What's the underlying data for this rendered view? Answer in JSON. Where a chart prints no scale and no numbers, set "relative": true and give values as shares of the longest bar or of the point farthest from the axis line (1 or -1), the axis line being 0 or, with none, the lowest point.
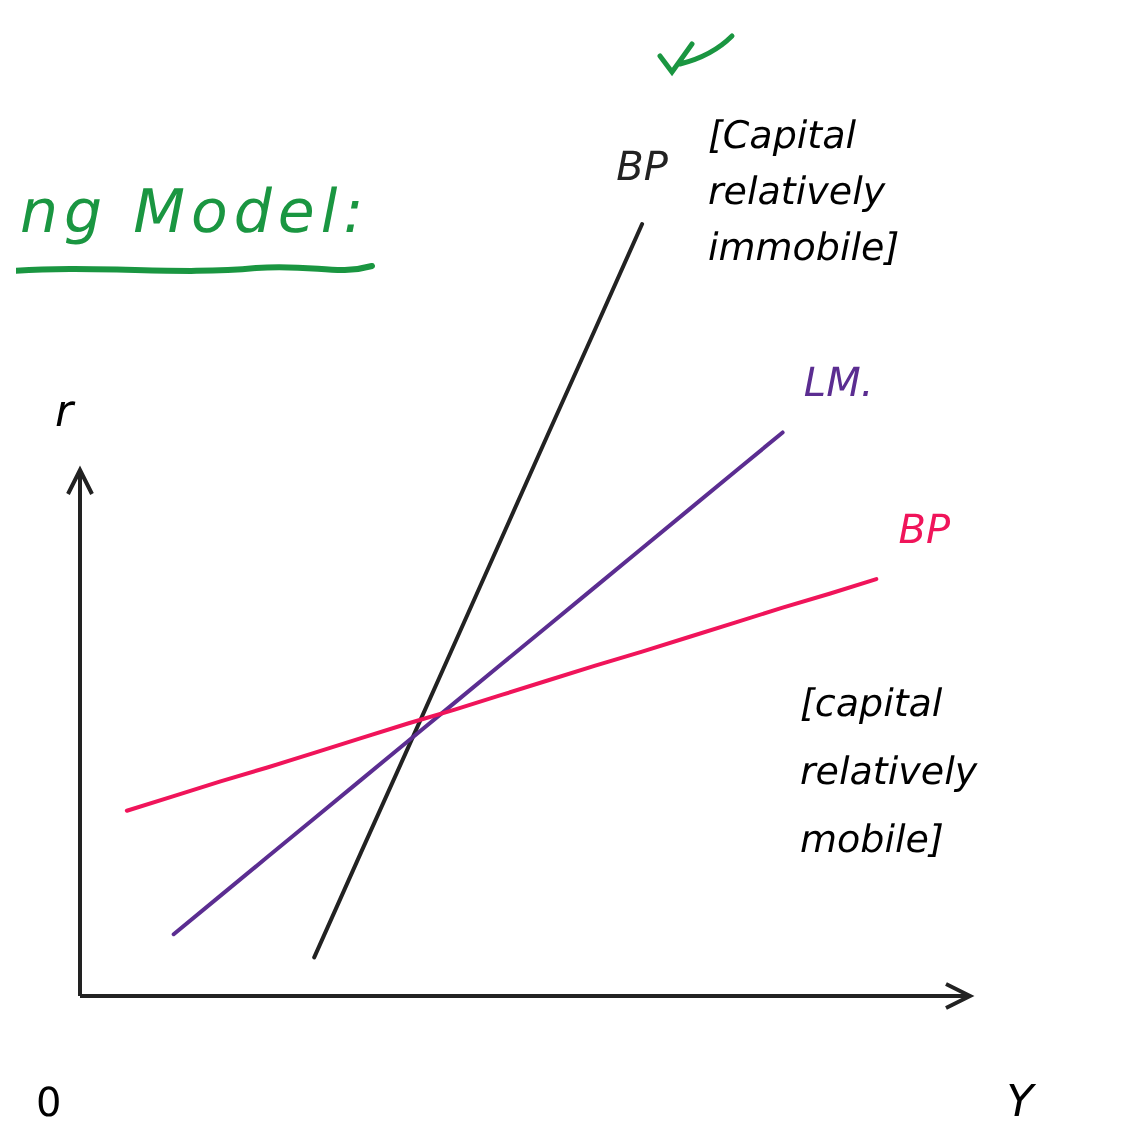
{
  "chart_data": {
    "type": "line",
    "title": "ng Model:",
    "xlabel": "Y",
    "ylabel": "r",
    "relative": true,
    "marker": "none",
    "line_style": "solid",
    "categories": [
      null,
      null,
      null,
      null,
      null,
      null,
      null,
      null,
      null,
      null,
      null,
      null,
      null,
      null,
      null,
      null,
      null,
      null,
      null,
      null
    ],
    "series": [
      {
        "name": "BP",
        "color": "#222222",
        "values": [
          null,
          null,
          null,
          null,
          null,
          0.05,
          0.186,
          0.321,
          0.457,
          0.593,
          0.729,
          0.864,
          1.0,
          null,
          null,
          null,
          null,
          null,
          null,
          null
        ]
      },
      {
        "name": "LM.",
        "color": "#5b2d91",
        "values": [
          null,
          null,
          0.08,
          0.13,
          0.18,
          0.23,
          0.28,
          0.33,
          0.38,
          0.43,
          0.48,
          0.53,
          0.58,
          0.63,
          0.68,
          0.73,
          null,
          null,
          null,
          null
        ]
      },
      {
        "name": "BP",
        "color": "#f0145a",
        "values": [
          null,
          0.24,
          0.259,
          0.278,
          0.296,
          0.315,
          0.334,
          0.353,
          0.371,
          0.39,
          0.409,
          0.428,
          0.446,
          0.465,
          0.484,
          0.503,
          0.521,
          0.54,
          null,
          null
        ]
      }
    ],
    "annotations": [
      "[Capital relatively immobile]",
      "[capital relatively mobile]",
      "0"
    ]
  }
}
